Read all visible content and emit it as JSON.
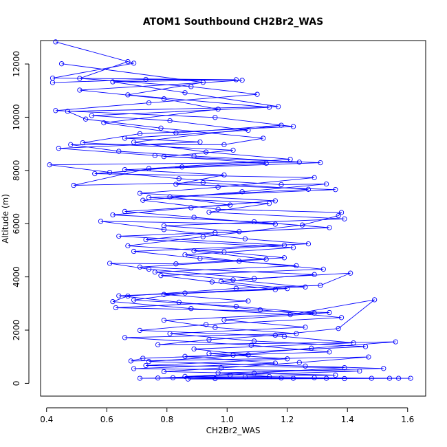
{
  "chart_data": {
    "type": "line",
    "title": "ATOM1 Southbound CH2Br2_WAS",
    "xlabel": "CH2Br2_WAS",
    "ylabel": "Altitude (m)",
    "xlim": [
      0.38,
      1.66
    ],
    "ylim": [
      -480,
      12880
    ],
    "xticks": [
      0.4,
      0.6,
      0.8,
      1.0,
      1.2,
      1.4,
      1.6
    ],
    "xtick_labels": [
      "0.4",
      "0.6",
      "0.8",
      "1.0",
      "1.2",
      "1.4",
      "1.6"
    ],
    "yticks": [
      0,
      2000,
      4000,
      6000,
      8000,
      10000,
      12000
    ],
    "ytick_labels": [
      "0",
      "2000",
      "4000",
      "6000",
      "8000",
      "10000",
      "12000"
    ],
    "grid": false,
    "legend": "none",
    "marker": "open-circle",
    "color": "#0000ff",
    "series": [
      {
        "points": [
          [
            0.43,
            12830
          ],
          [
            0.69,
            12030
          ],
          [
            0.42,
            11470
          ],
          [
            1.03,
            11410
          ],
          [
            0.62,
            11330
          ],
          [
            0.86,
            10920
          ],
          [
            1.17,
            10400
          ],
          [
            0.47,
            10220
          ],
          [
            0.53,
            9930
          ],
          [
            0.78,
            9590
          ],
          [
            1.12,
            9210
          ],
          [
            0.99,
            8970
          ],
          [
            0.48,
            8970
          ],
          [
            0.64,
            8720
          ],
          [
            0.89,
            8540
          ],
          [
            1.24,
            8310
          ],
          [
            0.41,
            8210
          ],
          [
            0.61,
            7930
          ],
          [
            0.84,
            7690
          ],
          [
            1.18,
            7470
          ],
          [
            1.33,
            7490
          ],
          [
            1.05,
            7200
          ],
          [
            0.72,
            6880
          ],
          [
            0.97,
            6540
          ],
          [
            1.38,
            6420
          ],
          [
            1.37,
            6300
          ],
          [
            1.25,
            5950
          ],
          [
            0.92,
            5510
          ],
          [
            0.67,
            5170
          ],
          [
            0.99,
            4930
          ],
          [
            1.19,
            4720
          ],
          [
            0.83,
            4490
          ],
          [
            0.61,
            4510
          ],
          [
            0.74,
            4290
          ],
          [
            1.09,
            3940
          ],
          [
            1.41,
            4140
          ],
          [
            1.31,
            3680
          ],
          [
            1.03,
            3570
          ],
          [
            0.67,
            3280
          ],
          [
            0.62,
            3070
          ],
          [
            0.88,
            2810
          ],
          [
            1.21,
            2580
          ],
          [
            1.49,
            3140
          ],
          [
            1.37,
            2060
          ],
          [
            1.16,
            1810
          ],
          [
            0.94,
            1640
          ],
          [
            0.77,
            1450
          ],
          [
            1.56,
            1560
          ],
          [
            1.28,
            1320
          ],
          [
            1.02,
            1060
          ],
          [
            0.72,
            940
          ],
          [
            0.68,
            840
          ],
          [
            1.47,
            990
          ],
          [
            1.24,
            780
          ],
          [
            0.98,
            580
          ],
          [
            0.79,
            440
          ],
          [
            1.36,
            310
          ],
          [
            1.06,
            240
          ],
          [
            0.71,
            190
          ],
          [
            1.61,
            190
          ],
          [
            1.39,
            180
          ],
          [
            0.87,
            160
          ],
          [
            1.18,
            200
          ]
        ]
      },
      {
        "points": [
          [
            0.45,
            12010
          ],
          [
            0.92,
            11310
          ],
          [
            0.67,
            10840
          ],
          [
            1.14,
            10370
          ],
          [
            0.55,
            10060
          ],
          [
            0.81,
            9870
          ],
          [
            1.07,
            9510
          ],
          [
            0.66,
            9210
          ],
          [
            0.91,
            9070
          ],
          [
            0.44,
            8830
          ],
          [
            0.76,
            8560
          ],
          [
            1.13,
            8270
          ],
          [
            0.85,
            8130
          ],
          [
            0.56,
            7880
          ],
          [
            1.29,
            7730
          ],
          [
            0.97,
            7370
          ],
          [
            0.71,
            7140
          ],
          [
            1.16,
            6860
          ],
          [
            0.88,
            6600
          ],
          [
            0.62,
            6330
          ],
          [
            1.09,
            6070
          ],
          [
            1.34,
            5850
          ],
          [
            0.96,
            5660
          ],
          [
            0.73,
            5400
          ],
          [
            1.22,
            5100
          ],
          [
            0.86,
            4830
          ],
          [
            1.04,
            4590
          ],
          [
            1.32,
            4290
          ],
          [
            0.78,
            4050
          ],
          [
            0.95,
            3810
          ],
          [
            1.16,
            3520
          ],
          [
            0.64,
            3290
          ],
          [
            0.84,
            3050
          ],
          [
            1.11,
            2760
          ],
          [
            1.38,
            2470
          ],
          [
            0.93,
            2210
          ],
          [
            0.71,
            1990
          ],
          [
            1.19,
            1760
          ],
          [
            1.42,
            1520
          ],
          [
            0.89,
            1290
          ],
          [
            1.07,
            1070
          ],
          [
            0.74,
            820
          ],
          [
            1.26,
            650
          ],
          [
            1.52,
            560
          ],
          [
            0.97,
            390
          ],
          [
            1.14,
            260
          ],
          [
            0.82,
            210
          ],
          [
            1.33,
            190
          ],
          [
            1.57,
            190
          ]
        ]
      },
      {
        "points": [
          [
            0.42,
            11300
          ],
          [
            0.73,
            11420
          ],
          [
            1.05,
            11390
          ],
          [
            0.51,
            11020
          ],
          [
            0.79,
            10690
          ],
          [
            0.97,
            10300
          ],
          [
            0.59,
            9790
          ],
          [
            0.83,
            9410
          ],
          [
            1.18,
            9700
          ],
          [
            0.69,
            9060
          ],
          [
            0.93,
            8690
          ],
          [
            1.21,
            8420
          ],
          [
            0.74,
            8070
          ],
          [
            0.49,
            7440
          ],
          [
            0.92,
            7540
          ],
          [
            1.27,
            7290
          ],
          [
            0.81,
            7010
          ],
          [
            1.01,
            6700
          ],
          [
            0.66,
            6460
          ],
          [
            0.89,
            6240
          ],
          [
            1.16,
            5980
          ],
          [
            0.58,
            6090
          ],
          [
            0.79,
            5780
          ],
          [
            1.06,
            5430
          ],
          [
            1.27,
            5240
          ],
          [
            0.69,
            4960
          ],
          [
            0.91,
            4690
          ],
          [
            1.23,
            4420
          ],
          [
            0.76,
            4180
          ],
          [
            1.02,
            3890
          ],
          [
            1.26,
            3620
          ],
          [
            0.86,
            3390
          ],
          [
            0.69,
            3130
          ],
          [
            1.03,
            2890
          ],
          [
            1.29,
            2640
          ],
          [
            0.79,
            2370
          ],
          [
            0.96,
            2100
          ],
          [
            1.23,
            1870
          ],
          [
            0.66,
            1720
          ],
          [
            1.08,
            1430
          ],
          [
            1.34,
            1180
          ],
          [
            0.86,
            1010
          ],
          [
            1.16,
            760
          ],
          [
            0.69,
            550
          ],
          [
            1.44,
            460
          ],
          [
            1.01,
            310
          ],
          [
            0.77,
            200
          ],
          [
            1.22,
            190
          ],
          [
            1.48,
            190
          ]
        ]
      },
      {
        "points": [
          [
            0.67,
            12090
          ],
          [
            0.51,
            11460
          ],
          [
            0.88,
            11150
          ],
          [
            1.1,
            10860
          ],
          [
            0.74,
            10540
          ],
          [
            0.43,
            10250
          ],
          [
            0.96,
            9990
          ],
          [
            1.22,
            9650
          ],
          [
            0.71,
            9380
          ],
          [
            0.52,
            9040
          ],
          [
            1.02,
            8760
          ],
          [
            0.79,
            8520
          ],
          [
            1.31,
            8290
          ],
          [
            0.66,
            8030
          ],
          [
            0.99,
            7830
          ],
          [
            0.83,
            7480
          ],
          [
            1.36,
            7280
          ],
          [
            0.74,
            6980
          ],
          [
            1.14,
            6760
          ],
          [
            0.94,
            6430
          ],
          [
            1.39,
            6180
          ],
          [
            0.79,
            5920
          ],
          [
            1.04,
            5700
          ],
          [
            0.64,
            5530
          ],
          [
            1.19,
            5190
          ],
          [
            0.89,
            4980
          ],
          [
            1.13,
            4660
          ],
          [
            0.71,
            4370
          ],
          [
            1.29,
            4090
          ],
          [
            0.98,
            3830
          ],
          [
            1.2,
            3560
          ],
          [
            0.79,
            3340
          ],
          [
            1.07,
            3090
          ],
          [
            0.63,
            2840
          ],
          [
            1.34,
            2660
          ],
          [
            0.99,
            2380
          ],
          [
            1.26,
            2110
          ],
          [
            0.81,
            1870
          ],
          [
            1.09,
            1590
          ],
          [
            1.46,
            1380
          ],
          [
            0.94,
            1120
          ],
          [
            1.2,
            920
          ],
          [
            0.73,
            670
          ],
          [
            1.39,
            590
          ],
          [
            1.09,
            380
          ],
          [
            0.86,
            260
          ],
          [
            1.29,
            210
          ],
          [
            1.54,
            190
          ],
          [
            0.96,
            180
          ]
        ]
      }
    ]
  }
}
